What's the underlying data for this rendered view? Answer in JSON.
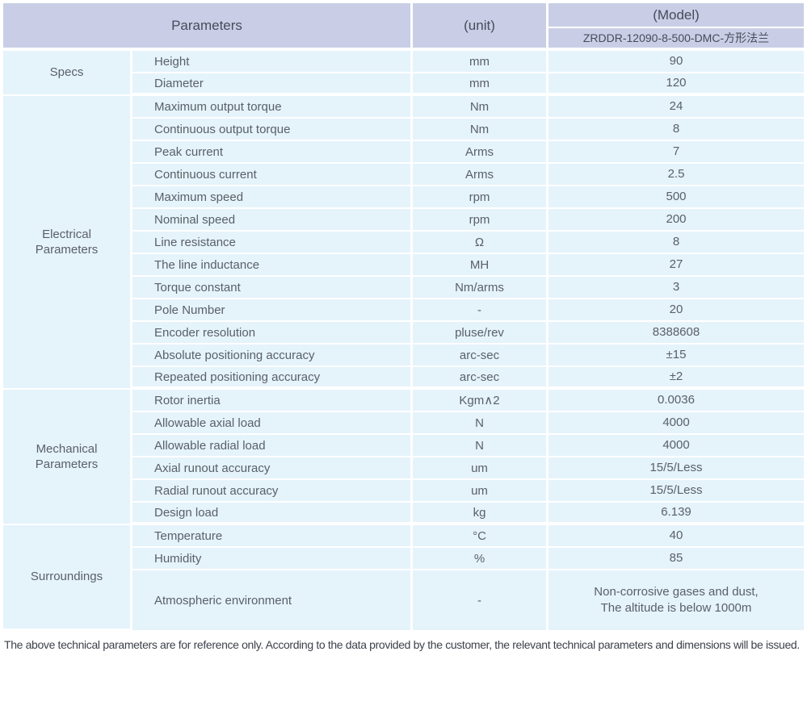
{
  "header": {
    "parameters_label": "Parameters",
    "unit_label": "(unit)",
    "model_label": "(Model)",
    "model_number": "ZRDDR-12090-8-500-DMC-方形法兰"
  },
  "sections": [
    {
      "category": "Specs",
      "rows": [
        {
          "parameter": "Height",
          "unit": "mm",
          "value": "90"
        },
        {
          "parameter": "Diameter",
          "unit": "mm",
          "value": "120"
        }
      ]
    },
    {
      "category": "Electrical\nParameters",
      "rows": [
        {
          "parameter": "Maximum output torque",
          "unit": "Nm",
          "value": "24"
        },
        {
          "parameter": "Continuous output torque",
          "unit": "Nm",
          "value": "8"
        },
        {
          "parameter": "Peak current",
          "unit": "Arms",
          "value": "7"
        },
        {
          "parameter": "Continuous current",
          "unit": "Arms",
          "value": "2.5"
        },
        {
          "parameter": "Maximum speed",
          "unit": "rpm",
          "value": "500"
        },
        {
          "parameter": "Nominal speed",
          "unit": "rpm",
          "value": "200"
        },
        {
          "parameter": "Line resistance",
          "unit": "Ω",
          "value": "8"
        },
        {
          "parameter": "The line inductance",
          "unit": "MH",
          "value": "27"
        },
        {
          "parameter": "Torque constant",
          "unit": "Nm/arms",
          "value": "3"
        },
        {
          "parameter": "Pole Number",
          "unit": "-",
          "value": "20"
        },
        {
          "parameter": "Encoder resolution",
          "unit": "pluse/rev",
          "value": "8388608"
        },
        {
          "parameter": "Absolute positioning accuracy",
          "unit": "arc-sec",
          "value": "±15"
        },
        {
          "parameter": "Repeated positioning accuracy",
          "unit": "arc-sec",
          "value": "±2"
        }
      ]
    },
    {
      "category": "Mechanical\nParameters",
      "rows": [
        {
          "parameter": "Rotor inertia",
          "unit": "Kgm∧2",
          "value": "0.0036"
        },
        {
          "parameter": "Allowable axial load",
          "unit": "N",
          "value": "4000"
        },
        {
          "parameter": "Allowable radial load",
          "unit": "N",
          "value": "4000"
        },
        {
          "parameter": "Axial runout accuracy",
          "unit": "um",
          "value": "15/5/Less"
        },
        {
          "parameter": "Radial runout accuracy",
          "unit": "um",
          "value": "15/5/Less"
        },
        {
          "parameter": "Design load",
          "unit": "kg",
          "value": "6.139"
        }
      ]
    },
    {
      "category": "Surroundings",
      "rows": [
        {
          "parameter": "Temperature",
          "unit": "°C",
          "value": "40"
        },
        {
          "parameter": "Humidity",
          "unit": "%",
          "value": "85"
        },
        {
          "parameter": "Atmospheric environment",
          "unit": "-",
          "value": "Non-corrosive gases and dust,\nThe altitude is below 1000m",
          "tall": true
        }
      ]
    }
  ],
  "footer_note": "The above technical parameters are for reference only. According to the data provided by the customer, the relevant technical parameters and dimensions will be issued.",
  "colors": {
    "header_bg": "#c9cee6",
    "row_bg": "#e5f3fb",
    "header_text": "#454c5a",
    "body_text": "#5a6068"
  }
}
